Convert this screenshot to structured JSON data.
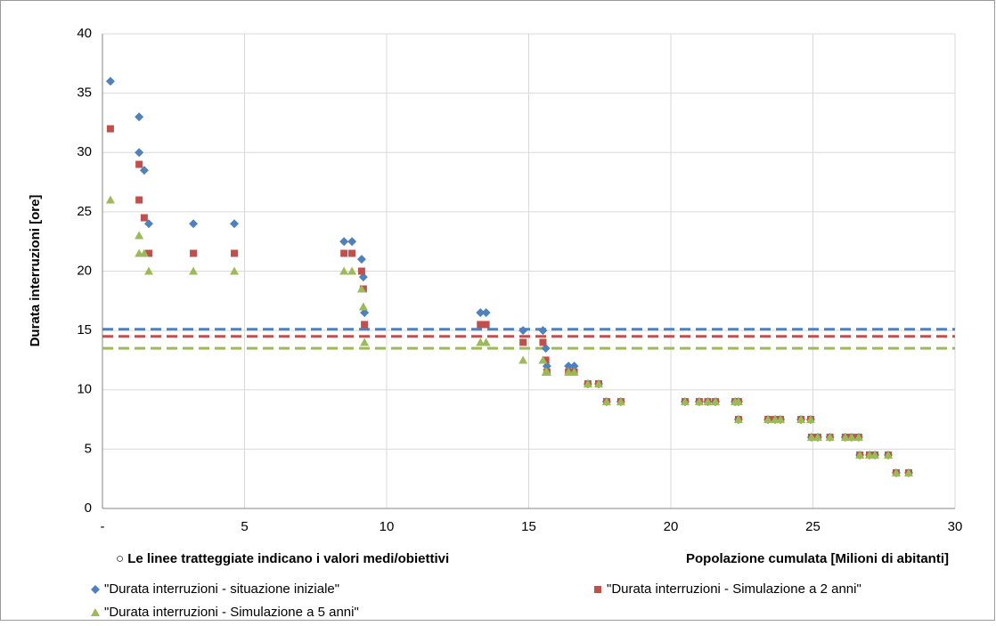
{
  "chart_data": {
    "type": "scatter",
    "y_label": "Durata interruzioni [ore]",
    "x_label": "Popolazione cumulata [Milioni di abitanti]",
    "annotation": "○ Le linee tratteggiate indicano i valori medi/obiettivi",
    "xlim": [
      0,
      30
    ],
    "ylim": [
      0,
      40
    ],
    "xticks": [
      {
        "value": 0,
        "label": "-"
      },
      5,
      10,
      15,
      20,
      25,
      30
    ],
    "yticks": [
      0,
      5,
      10,
      15,
      20,
      25,
      30,
      35,
      40
    ],
    "grid": true,
    "legend": "bottom",
    "reference_lines": [
      {
        "value": 15.1,
        "color": "#4f81bd"
      },
      {
        "value": 14.5,
        "color": "#c0504d"
      },
      {
        "value": 13.5,
        "color": "#9bbb59"
      }
    ],
    "series": [
      {
        "name": "\"Durata interruzioni - situazione iniziale\"",
        "color": "#4f81bd",
        "marker": "diamond",
        "x": [
          0.28,
          1.29,
          1.29,
          1.47,
          1.63,
          3.2,
          4.64,
          8.5,
          8.78,
          9.12,
          9.18,
          9.22,
          13.3,
          13.5,
          14.8,
          15.5,
          15.6,
          15.64,
          16.4,
          16.6,
          17.08,
          17.46,
          17.74,
          18.24,
          20.5,
          21.0,
          21.3,
          21.57,
          22.26,
          22.38,
          22.38,
          23.42,
          23.67,
          23.86,
          24.58,
          24.92,
          24.95,
          25.17,
          25.6,
          26.14,
          26.36,
          26.61,
          26.65,
          26.99,
          27.18,
          27.65,
          27.93,
          28.37
        ],
        "values": [
          36,
          33,
          30,
          28.5,
          24,
          24,
          24,
          22.5,
          22.5,
          21,
          19.5,
          16.5,
          16.5,
          16.5,
          15,
          15,
          13.5,
          12,
          12,
          12,
          10.5,
          10.5,
          9,
          9,
          9,
          9,
          9,
          9,
          9,
          9,
          7.5,
          7.5,
          7.5,
          7.5,
          7.5,
          7.5,
          6,
          6,
          6,
          6,
          6,
          6,
          4.5,
          4.5,
          4.5,
          4.5,
          3,
          3
        ]
      },
      {
        "name": "\"Durata interruzioni - Simulazione a 2 anni\"",
        "color": "#c0504d",
        "marker": "square",
        "x": [
          0.28,
          1.29,
          1.29,
          1.47,
          1.63,
          3.2,
          4.64,
          8.5,
          8.78,
          9.12,
          9.18,
          9.22,
          13.3,
          13.5,
          14.8,
          15.5,
          15.6,
          15.64,
          16.4,
          16.6,
          17.08,
          17.46,
          17.74,
          18.24,
          20.5,
          21.0,
          21.3,
          21.57,
          22.26,
          22.38,
          22.38,
          23.42,
          23.67,
          23.86,
          24.58,
          24.92,
          24.95,
          25.17,
          25.6,
          26.14,
          26.36,
          26.61,
          26.65,
          26.99,
          27.18,
          27.65,
          27.93,
          28.37
        ],
        "values": [
          32,
          29,
          26,
          24.5,
          21.5,
          21.5,
          21.5,
          21.5,
          21.5,
          20,
          18.5,
          15.5,
          15.5,
          15.5,
          14,
          14,
          12.5,
          11.5,
          11.5,
          11.5,
          10.5,
          10.5,
          9,
          9,
          9,
          9,
          9,
          9,
          9,
          9,
          7.5,
          7.5,
          7.5,
          7.5,
          7.5,
          7.5,
          6,
          6,
          6,
          6,
          6,
          6,
          4.5,
          4.5,
          4.5,
          4.5,
          3,
          3
        ]
      },
      {
        "name": "\"Durata interruzioni - Simulazione a 5 anni\"",
        "color": "#9bbb59",
        "marker": "triangle",
        "x": [
          0.28,
          1.29,
          1.29,
          1.47,
          1.63,
          3.2,
          4.64,
          8.5,
          8.78,
          9.12,
          9.18,
          9.22,
          13.3,
          13.5,
          14.8,
          15.5,
          15.6,
          15.64,
          16.4,
          16.6,
          17.08,
          17.46,
          17.74,
          18.24,
          20.5,
          21.0,
          21.3,
          21.57,
          22.26,
          22.38,
          22.38,
          23.42,
          23.67,
          23.86,
          24.58,
          24.92,
          24.95,
          25.17,
          25.6,
          26.14,
          26.36,
          26.61,
          26.65,
          26.99,
          27.18,
          27.65,
          27.93,
          28.37
        ],
        "values": [
          26,
          23,
          21.5,
          21.5,
          20,
          20,
          20,
          20,
          20,
          18.5,
          17,
          14,
          14,
          14,
          12.5,
          12.5,
          11.5,
          11.5,
          11.5,
          11.5,
          10.5,
          10.5,
          9,
          9,
          9,
          9,
          9,
          9,
          9,
          9,
          7.5,
          7.5,
          7.5,
          7.5,
          7.5,
          7.5,
          6,
          6,
          6,
          6,
          6,
          6,
          4.5,
          4.5,
          4.5,
          4.5,
          3,
          3
        ]
      }
    ]
  }
}
